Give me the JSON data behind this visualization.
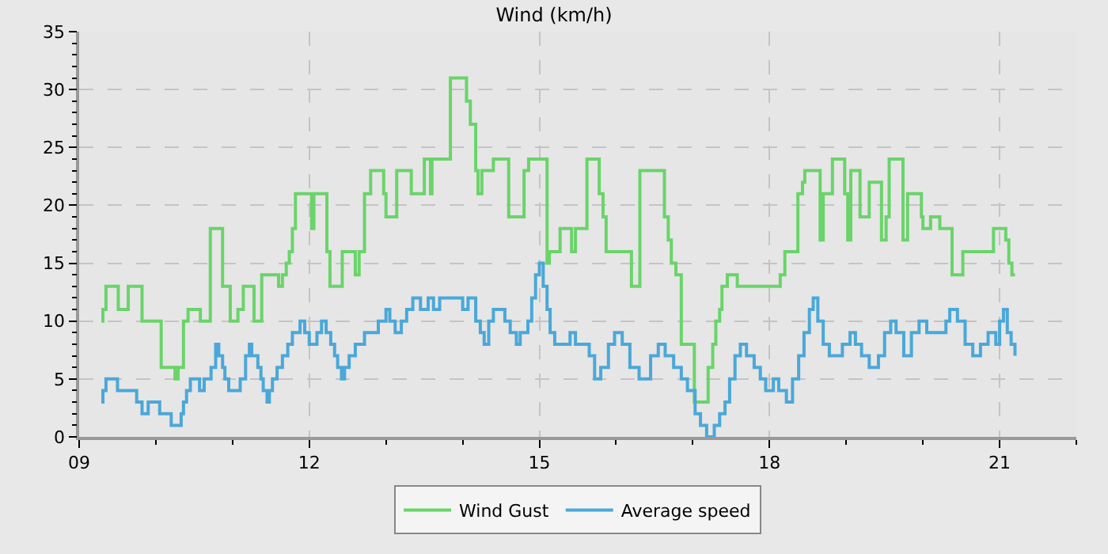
{
  "chart_data": {
    "type": "step",
    "title": "Wind (km/h)",
    "xlim": [
      9,
      22
    ],
    "ylim": [
      0,
      35
    ],
    "xticks": [
      {
        "value": 9,
        "label": "09"
      },
      12,
      15,
      18,
      21
    ],
    "yticks": [
      0,
      5,
      10,
      15,
      20,
      25,
      30,
      35
    ],
    "grid": true,
    "legend": "bottom",
    "line_style": "solid",
    "marker": "none",
    "series": [
      {
        "name": "Wind Gust",
        "color": "#6ad46a",
        "x": [
          9.29,
          9.31,
          9.35,
          9.51,
          9.64,
          9.82,
          10.07,
          10.25,
          10.29,
          10.36,
          10.42,
          10.58,
          10.71,
          10.87,
          10.97,
          11.07,
          11.14,
          11.28,
          11.38,
          11.6,
          11.65,
          11.7,
          11.74,
          11.78,
          11.82,
          12.03,
          12.06,
          12.23,
          12.27,
          12.43,
          12.6,
          12.65,
          12.72,
          12.8,
          12.97,
          13.0,
          13.14,
          13.33,
          13.5,
          13.58,
          13.6,
          13.84,
          14.05,
          14.1,
          14.17,
          14.2,
          14.25,
          14.4,
          14.6,
          14.8,
          14.86,
          15.1,
          15.13,
          15.27,
          15.42,
          15.47,
          15.62,
          15.78,
          15.83,
          15.87,
          16.2,
          16.31,
          16.63,
          16.68,
          16.72,
          16.78,
          16.85,
          17.02,
          17.2,
          17.26,
          17.3,
          17.35,
          17.38,
          17.45,
          17.58,
          18.14,
          18.2,
          18.37,
          18.43,
          18.46,
          18.66,
          18.7,
          18.82,
          18.98,
          19.02,
          19.06,
          19.18,
          19.3,
          19.46,
          19.52,
          19.56,
          19.74,
          19.8,
          19.98,
          20.0,
          20.1,
          20.22,
          20.38,
          20.52,
          20.92,
          21.08,
          21.12,
          21.16,
          21.2
        ],
        "values": [
          10,
          11,
          13,
          11,
          13,
          10,
          6,
          5,
          6,
          10,
          11,
          10,
          18,
          13,
          10,
          11,
          13,
          10,
          14,
          13,
          14,
          15,
          16,
          18,
          21,
          18,
          21,
          16,
          13,
          16,
          14,
          16,
          21,
          23,
          21,
          19,
          23,
          21,
          24,
          21,
          24,
          31,
          29,
          27,
          23,
          21,
          23,
          24,
          19,
          23,
          24,
          15,
          16,
          18,
          16,
          18,
          24,
          21,
          19,
          16,
          13,
          23,
          19,
          17,
          15,
          14,
          8,
          3,
          6,
          8,
          10,
          11,
          13,
          14,
          13,
          14,
          16,
          21,
          22,
          23,
          17,
          21,
          24,
          21,
          17,
          23,
          19,
          22,
          17,
          19,
          24,
          17,
          21,
          19,
          18,
          19,
          18,
          14,
          16,
          18,
          17,
          15,
          14,
          14
        ]
      },
      {
        "name": "Average speed",
        "color": "#4aa8d8",
        "x": [
          9.29,
          9.31,
          9.35,
          9.5,
          9.75,
          9.82,
          9.9,
          10.05,
          10.2,
          10.33,
          10.36,
          10.4,
          10.45,
          10.57,
          10.63,
          10.72,
          10.78,
          10.82,
          10.87,
          10.9,
          10.95,
          11.1,
          11.17,
          11.22,
          11.25,
          11.33,
          11.37,
          11.4,
          11.45,
          11.48,
          11.52,
          11.58,
          11.65,
          11.72,
          11.78,
          11.88,
          11.94,
          12.0,
          12.1,
          12.16,
          12.22,
          12.28,
          12.33,
          12.37,
          12.42,
          12.46,
          12.52,
          12.6,
          12.72,
          12.9,
          13.0,
          13.05,
          13.12,
          13.2,
          13.27,
          13.35,
          13.45,
          13.55,
          13.62,
          13.7,
          13.92,
          14.0,
          14.07,
          14.17,
          14.23,
          14.28,
          14.34,
          14.4,
          14.55,
          14.62,
          14.7,
          14.75,
          14.85,
          14.9,
          14.95,
          15.0,
          15.05,
          15.1,
          15.14,
          15.2,
          15.4,
          15.47,
          15.55,
          15.65,
          15.72,
          15.8,
          15.9,
          15.98,
          16.08,
          16.18,
          16.3,
          16.45,
          16.55,
          16.64,
          16.75,
          16.85,
          16.93,
          17.03,
          17.1,
          17.18,
          17.28,
          17.35,
          17.42,
          17.48,
          17.55,
          17.62,
          17.7,
          17.8,
          17.88,
          17.95,
          18.05,
          18.12,
          18.22,
          18.3,
          18.38,
          18.45,
          18.52,
          18.57,
          18.63,
          18.7,
          18.78,
          18.88,
          18.95,
          19.05,
          19.12,
          19.2,
          19.3,
          19.42,
          19.5,
          19.58,
          19.65,
          19.75,
          19.85,
          19.95,
          20.05,
          20.15,
          20.3,
          20.35,
          20.45,
          20.55,
          20.65,
          20.75,
          20.85,
          20.95,
          21.0,
          21.05,
          21.1,
          21.15,
          21.2
        ],
        "values": [
          3,
          4,
          5,
          4,
          3,
          2,
          3,
          2,
          1,
          2,
          3,
          4,
          5,
          4,
          5,
          6,
          8,
          7,
          6,
          5,
          4,
          5,
          7,
          8,
          7,
          6,
          5,
          4,
          3,
          4,
          5,
          6,
          7,
          8,
          9,
          10,
          9,
          8,
          9,
          10,
          9,
          8,
          7,
          6,
          5,
          6,
          7,
          8,
          9,
          10,
          11,
          10,
          9,
          10,
          11,
          12,
          11,
          12,
          11,
          12,
          12,
          11,
          12,
          10,
          9,
          8,
          10,
          11,
          10,
          9,
          8,
          9,
          10,
          12,
          14,
          15,
          13,
          11,
          9,
          8,
          9,
          8,
          8,
          7,
          5,
          6,
          8,
          9,
          8,
          6,
          5,
          7,
          8,
          7,
          6,
          5,
          4,
          2,
          1,
          0,
          1,
          2,
          3,
          5,
          7,
          8,
          7,
          6,
          5,
          4,
          5,
          4,
          3,
          5,
          7,
          9,
          11,
          12,
          10,
          8,
          7,
          7,
          8,
          9,
          8,
          7,
          6,
          7,
          9,
          10,
          9,
          7,
          9,
          10,
          9,
          9,
          10,
          11,
          10,
          8,
          7,
          8,
          9,
          8,
          10,
          11,
          9,
          8,
          7
        ]
      }
    ]
  }
}
